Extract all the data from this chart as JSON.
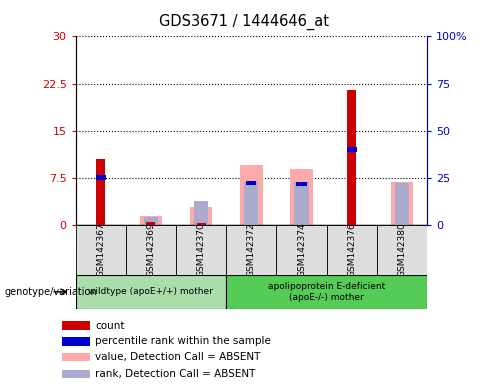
{
  "title": "GDS3671 / 1444646_at",
  "samples": [
    "GSM142367",
    "GSM142369",
    "GSM142370",
    "GSM142372",
    "GSM142374",
    "GSM142376",
    "GSM142380"
  ],
  "count_values": [
    10.5,
    0.5,
    0.2,
    0.0,
    0.0,
    21.5,
    0.0
  ],
  "percentile_values": [
    25.0,
    0.0,
    0.0,
    22.0,
    21.5,
    40.0,
    0.0
  ],
  "absent_value_values": [
    0.0,
    1.3,
    2.8,
    9.5,
    8.8,
    0.0,
    6.8
  ],
  "absent_rank_values": [
    0.0,
    4.0,
    12.5,
    22.5,
    22.5,
    0.0,
    22.0
  ],
  "ylim_left": [
    0,
    30
  ],
  "ylim_right": [
    0,
    100
  ],
  "yticks_left": [
    0,
    7.5,
    15,
    22.5,
    30
  ],
  "yticks_right": [
    0,
    25,
    50,
    75,
    100
  ],
  "ytick_labels_left": [
    "0",
    "7.5",
    "15",
    "22.5",
    "30"
  ],
  "ytick_labels_right": [
    "0",
    "25",
    "50",
    "75",
    "100%"
  ],
  "color_count": "#cc0000",
  "color_percentile": "#0000cc",
  "color_absent_value": "#ffaaaa",
  "color_absent_rank": "#aaaacc",
  "group1_label": "wildtype (apoE+/+) mother",
  "group2_label": "apolipoprotein E-deficient\n(apoE-/-) mother",
  "genotype_label": "genotype/variation",
  "legend_items": [
    {
      "label": "count",
      "color": "#cc0000"
    },
    {
      "label": "percentile rank within the sample",
      "color": "#0000cc"
    },
    {
      "label": "value, Detection Call = ABSENT",
      "color": "#ffaaaa"
    },
    {
      "label": "rank, Detection Call = ABSENT",
      "color": "#aaaacc"
    }
  ],
  "group_box_color1": "#aaddaa",
  "group_box_color2": "#55cc55"
}
